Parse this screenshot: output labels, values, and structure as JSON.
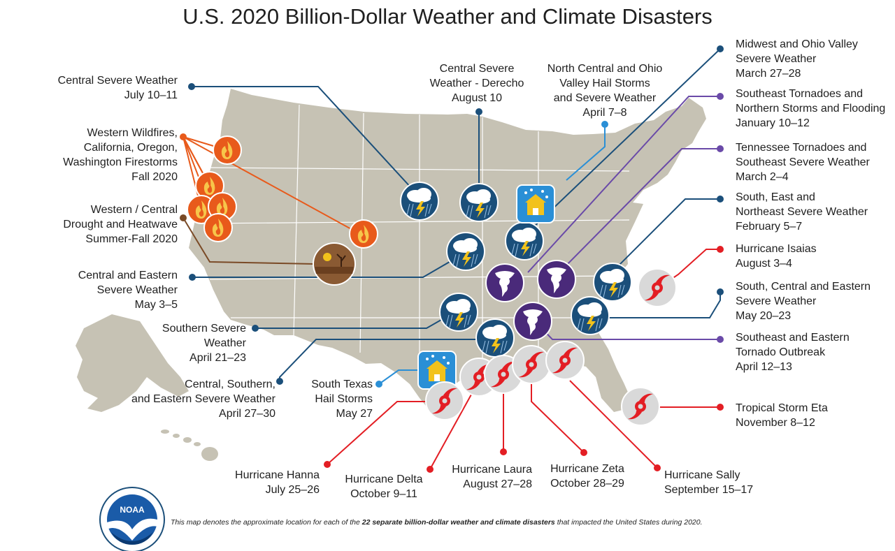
{
  "title": "U.S. 2020 Billion-Dollar Weather and Climate Disasters",
  "colors": {
    "map_land": "#c6c2b4",
    "state_border": "#ffffff",
    "severe_weather": "#1b4f7a",
    "tornado": "#4a2a7a",
    "hurricane": "#e31e24",
    "hail": "#2a8fd6",
    "wildfire": "#e85a1b",
    "drought": "#7a4a26"
  },
  "legend_types": [
    "severe-storm-icon",
    "tornado-icon",
    "hurricane-icon",
    "hail-icon",
    "wildfire-icon",
    "drought-icon"
  ],
  "events": [
    {
      "id": "central-severe-jul",
      "type": "severe_weather",
      "lines": [
        "Central Severe Weather",
        "July 10–11"
      ]
    },
    {
      "id": "western-wildfires",
      "type": "wildfire",
      "lines": [
        "Western Wildfires,",
        "California, Oregon,",
        "Washington Firestorms",
        "Fall 2020"
      ]
    },
    {
      "id": "western-drought",
      "type": "drought",
      "lines": [
        "Western / Central",
        "Drought and Heatwave",
        "Summer-Fall 2020"
      ]
    },
    {
      "id": "central-eastern-may3",
      "type": "severe_weather",
      "lines": [
        "Central and Eastern",
        "Severe Weather",
        "May 3–5"
      ]
    },
    {
      "id": "southern-severe-apr21",
      "type": "severe_weather",
      "lines": [
        "Southern Severe",
        "Weather",
        "April 21–23"
      ]
    },
    {
      "id": "central-southern-eastern-apr27",
      "type": "severe_weather",
      "lines": [
        "Central, Southern,",
        "and Eastern Severe Weather",
        "April 27–30"
      ]
    },
    {
      "id": "south-texas-hail",
      "type": "hail",
      "lines": [
        "South Texas",
        "Hail Storms",
        "May 27"
      ]
    },
    {
      "id": "derecho",
      "type": "severe_weather",
      "lines": [
        "Central Severe",
        "Weather - Derecho",
        "August 10"
      ]
    },
    {
      "id": "north-central-hail",
      "type": "hail",
      "lines": [
        "North Central and Ohio",
        "Valley Hail Storms",
        "and Severe Weather",
        "April 7–8"
      ]
    },
    {
      "id": "midwest-ohio",
      "type": "severe_weather",
      "lines": [
        "Midwest and Ohio Valley",
        "Severe Weather",
        "March 27–28"
      ]
    },
    {
      "id": "southeast-tornadoes-jan",
      "type": "tornado",
      "lines": [
        "Southeast Tornadoes and",
        "Northern Storms and Flooding",
        "January 10–12"
      ]
    },
    {
      "id": "tennessee-tornadoes",
      "type": "tornado",
      "lines": [
        "Tennessee Tornadoes and",
        "Southeast Severe Weather",
        "March 2–4"
      ]
    },
    {
      "id": "south-east-northeast-feb",
      "type": "severe_weather",
      "lines": [
        "South, East and",
        "Northeast Severe Weather",
        "February 5–7"
      ]
    },
    {
      "id": "isaias",
      "type": "hurricane",
      "lines": [
        "Hurricane Isaias",
        "August 3–4"
      ]
    },
    {
      "id": "south-central-eastern-may20",
      "type": "severe_weather",
      "lines": [
        "South, Central and Eastern",
        "Severe Weather",
        "May 20–23"
      ]
    },
    {
      "id": "southeast-eastern-tornado-apr12",
      "type": "tornado",
      "lines": [
        "Southeast and Eastern",
        "Tornado Outbreak",
        "April 12–13"
      ]
    },
    {
      "id": "eta",
      "type": "hurricane",
      "lines": [
        "Tropical Storm Eta",
        "November 8–12"
      ]
    },
    {
      "id": "hanna",
      "type": "hurricane",
      "lines": [
        "Hurricane Hanna",
        "July 25–26"
      ]
    },
    {
      "id": "delta",
      "type": "hurricane",
      "lines": [
        "Hurricane Delta",
        "October 9–11"
      ]
    },
    {
      "id": "laura",
      "type": "hurricane",
      "lines": [
        "Hurricane Laura",
        "August 27–28"
      ]
    },
    {
      "id": "zeta",
      "type": "hurricane",
      "lines": [
        "Hurricane Zeta",
        "October 28–29"
      ]
    },
    {
      "id": "sally",
      "type": "hurricane",
      "lines": [
        "Hurricane Sally",
        "September 15–17"
      ]
    }
  ],
  "footnote": {
    "before": "This map denotes the approximate location for each of the ",
    "bold": "22 separate billion-dollar weather and climate disasters",
    "after": " that impacted the United States during 2020.",
    "logo_text": "NOAA"
  }
}
